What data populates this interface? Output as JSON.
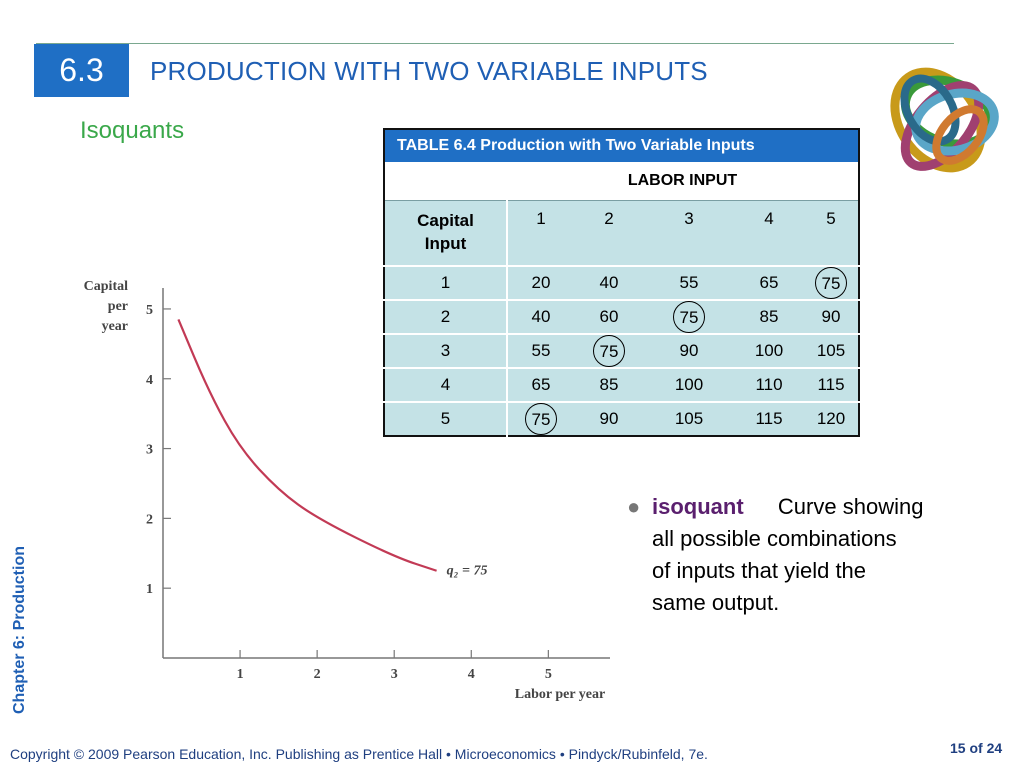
{
  "header": {
    "section_number": "6.3",
    "title": "PRODUCTION WITH TWO VARIABLE INPUTS",
    "subtitle": "Isoquants"
  },
  "side_label": "Chapter 6: Production",
  "table": {
    "caption": "TABLE 6.4  Production with Two Variable Inputs",
    "labor_header": "LABOR INPUT",
    "capital_header_line1": "Capital",
    "capital_header_line2": "Input",
    "labor_values": [
      "1",
      "2",
      "3",
      "4",
      "5"
    ],
    "rows": [
      {
        "capital": "1",
        "values": [
          "20",
          "40",
          "55",
          "65",
          "75"
        ]
      },
      {
        "capital": "2",
        "values": [
          "40",
          "60",
          "75",
          "85",
          "90"
        ]
      },
      {
        "capital": "3",
        "values": [
          "55",
          "75",
          "90",
          "100",
          "105"
        ]
      },
      {
        "capital": "4",
        "values": [
          "65",
          "85",
          "100",
          "110",
          "115"
        ]
      },
      {
        "capital": "5",
        "values": [
          "75",
          "90",
          "105",
          "115",
          "120"
        ]
      }
    ],
    "circled_cells": [
      {
        "row": 0,
        "col": 4
      },
      {
        "row": 1,
        "col": 2
      },
      {
        "row": 2,
        "col": 1
      },
      {
        "row": 4,
        "col": 0
      }
    ]
  },
  "bullet": {
    "term": "isoquant",
    "line1": "Curve showing",
    "line2": "all possible combinations",
    "line3": "of inputs that yield the",
    "line4": "same output."
  },
  "chart_data": {
    "type": "line",
    "ylabel_lines": [
      "Capital",
      "per",
      "year"
    ],
    "xlabel": "Labor per year",
    "xticks": [
      "1",
      "2",
      "3",
      "4",
      "5"
    ],
    "yticks": [
      "1",
      "2",
      "3",
      "4",
      "5"
    ],
    "xlim": [
      0,
      5.8
    ],
    "ylim": [
      0,
      5.3
    ],
    "series": [
      {
        "name": "q₂ = 75",
        "points": [
          [
            0.2,
            4.85
          ],
          [
            0.6,
            3.8
          ],
          [
            1.0,
            3.0
          ],
          [
            1.5,
            2.4
          ],
          [
            2.0,
            2.0
          ],
          [
            3.0,
            1.45
          ],
          [
            3.55,
            1.25
          ]
        ]
      }
    ],
    "line_color": "#c23a55"
  },
  "footer": {
    "copyright": "Copyright © 2009 Pearson Education, Inc. Publishing as Prentice Hall  •  Microeconomics  •  Pindyck/Rubinfeld, 7e.",
    "page": "15 of 24"
  },
  "colors": {
    "accent_blue": "#1f6fc5",
    "title_blue": "#1f5fb4",
    "subtitle_green": "#3aa84a",
    "table_fill": "#c4e2e6"
  }
}
